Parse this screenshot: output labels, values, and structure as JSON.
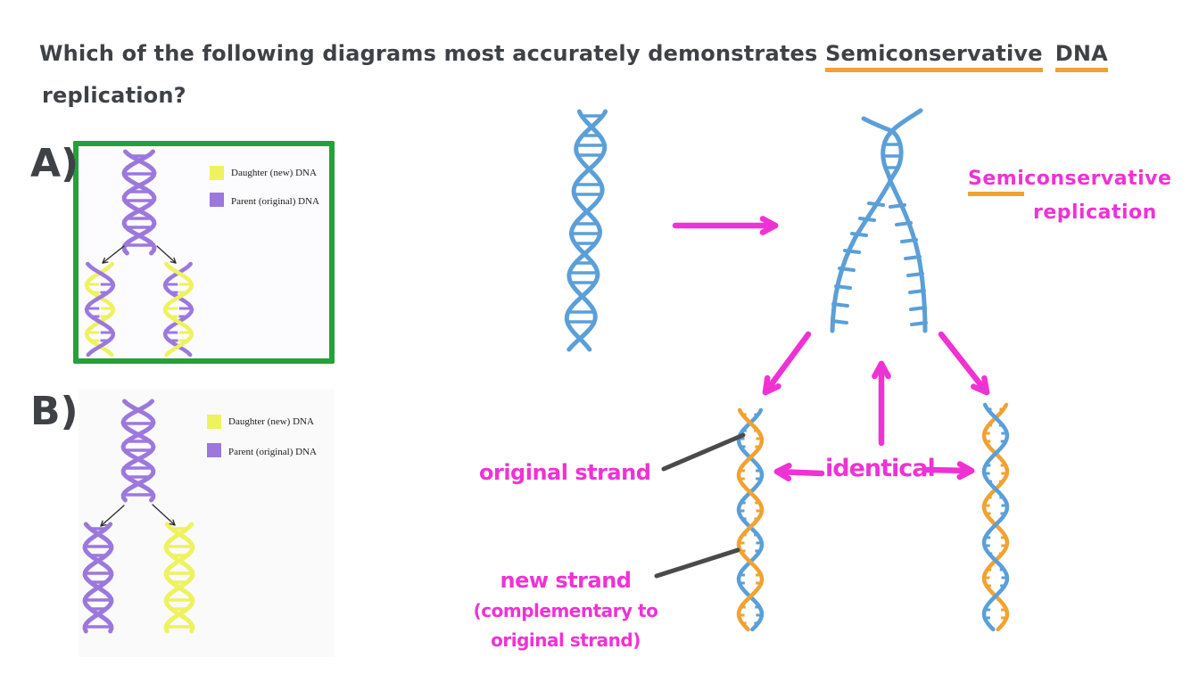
{
  "question": {
    "prefix": "Which of the following diagrams most accurately demonstrates",
    "highlight1": "Semiconservative",
    "highlight2": "DNA",
    "line2": "replication?"
  },
  "optionA": {
    "label": "A)",
    "selected": true,
    "legend": [
      {
        "name": "daughter-dna",
        "label": "Daughter (new) DNA",
        "color": "#eef25e"
      },
      {
        "name": "parent-dna",
        "label": "Parent (original) DNA",
        "color": "#9c78dd"
      }
    ]
  },
  "optionB": {
    "label": "B)",
    "selected": false,
    "legend": [
      {
        "name": "daughter-dna",
        "label": "Daughter (new) DNA",
        "color": "#eef25e"
      },
      {
        "name": "parent-dna",
        "label": "Parent (original) DNA",
        "color": "#9c78dd"
      }
    ]
  },
  "annotations": {
    "semi": "Semi",
    "conservative": "conservative",
    "replication": "replication",
    "original_strand": "original strand",
    "identical": "identical",
    "new_strand_line1": "new strand",
    "new_strand_line2": "(complementary to",
    "new_strand_line3": "original strand)"
  },
  "colors": {
    "ink": "#3e4246",
    "pink": "#ef32d4",
    "orange": "#f0a232",
    "blue": "#5b9fd8",
    "purple": "#9c78dd",
    "yellow": "#eef25e",
    "green_box": "#23a13a",
    "pointer_gray": "#4a4a4a",
    "black_arrow": "#2b2b2b"
  }
}
